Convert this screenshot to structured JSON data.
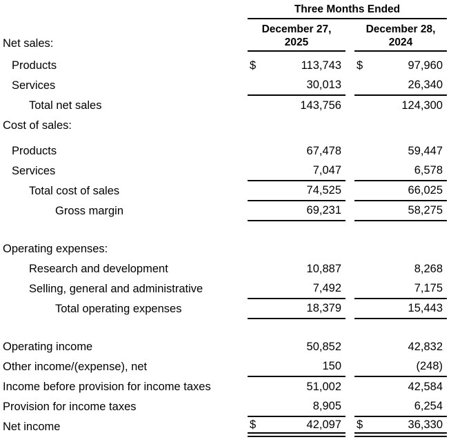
{
  "table": {
    "period_header": "Three Months Ended",
    "currency_symbol": "$",
    "first_section_label": "Net sales:",
    "columns": [
      {
        "line1": "December 27,",
        "line2": "2025"
      },
      {
        "line1": "December 28,",
        "line2": "2024"
      }
    ],
    "rows": [
      {
        "label": "Products",
        "indent": 1,
        "dollar": true,
        "v1": "113,743",
        "v2": "97,960"
      },
      {
        "label": "Services",
        "indent": 1,
        "v1": "30,013",
        "v2": "26,340",
        "rule": "single"
      },
      {
        "label": "Total net sales",
        "indent": 2,
        "v1": "143,756",
        "v2": "124,300"
      },
      {
        "label": "Cost of sales:",
        "indent": 0
      },
      {
        "type": "spacer",
        "size": "sm"
      },
      {
        "label": "Products",
        "indent": 1,
        "v1": "67,478",
        "v2": "59,447"
      },
      {
        "label": "Services",
        "indent": 1,
        "v1": "7,047",
        "v2": "6,578",
        "rule": "single"
      },
      {
        "label": "Total cost of sales",
        "indent": 2,
        "v1": "74,525",
        "v2": "66,025",
        "rule": "single"
      },
      {
        "label": "Gross margin",
        "indent": 3,
        "v1": "69,231",
        "v2": "58,275",
        "rule": "single"
      },
      {
        "type": "spacer",
        "size": "lg"
      },
      {
        "label": "Operating expenses:",
        "indent": 0
      },
      {
        "label": "Research and development",
        "indent": 2,
        "v1": "10,887",
        "v2": "8,268"
      },
      {
        "label": "Selling, general and administrative",
        "indent": 2,
        "v1": "7,492",
        "v2": "7,175",
        "rule": "single"
      },
      {
        "label": "Total operating expenses",
        "indent": 3,
        "v1": "18,379",
        "v2": "15,443",
        "rule": "single"
      },
      {
        "type": "spacer",
        "size": "lg"
      },
      {
        "label": "Operating income",
        "indent": 0,
        "v1": "50,852",
        "v2": "42,832"
      },
      {
        "label": "Other income/(expense), net",
        "indent": 0,
        "v1": "150",
        "v2": "(248)",
        "rule": "single"
      },
      {
        "label": "Income before provision for income taxes",
        "indent": 0,
        "v1": "51,002",
        "v2": "42,584"
      },
      {
        "label": "Provision for income taxes",
        "indent": 0,
        "v1": "8,905",
        "v2": "6,254",
        "rule": "single"
      },
      {
        "label": "Net income",
        "indent": 0,
        "dollar": true,
        "v1": "42,097",
        "v2": "36,330",
        "rule": "double"
      }
    ]
  }
}
